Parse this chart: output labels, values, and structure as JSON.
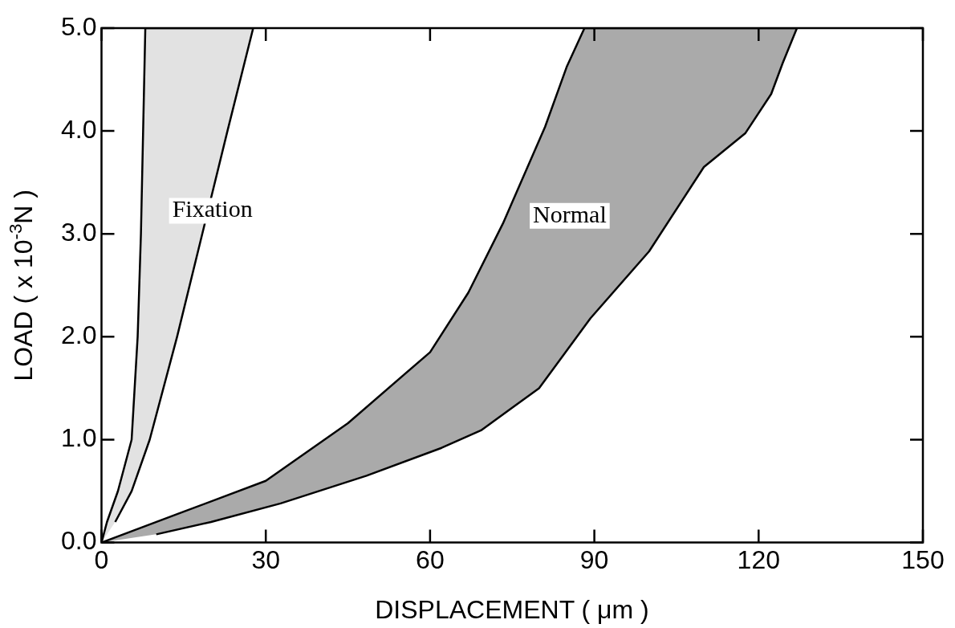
{
  "chart_data": {
    "type": "area",
    "xlabel": "DISPLACEMENT ( μm )",
    "ylabel": "LOAD ( x 10$^{-3}$N )",
    "xlim": [
      0,
      150
    ],
    "ylim": [
      0,
      5
    ],
    "xticks": [
      0,
      30,
      60,
      90,
      120,
      150
    ],
    "yticks": [
      {
        "value": 0,
        "label": "0.0"
      },
      {
        "value": 1,
        "label": "1.0"
      },
      {
        "value": 2,
        "label": "2.0"
      },
      {
        "value": 3,
        "label": "3.0"
      },
      {
        "value": 4,
        "label": "4.0"
      },
      {
        "value": 5,
        "label": "5.0"
      }
    ],
    "grid": false,
    "series": [
      {
        "color": "#a8a8a8",
        "x": [
          0,
          1,
          3,
          5.5,
          6.6,
          7.2,
          7.6,
          8,
          27.7,
          23,
          18.4,
          13.8,
          8.8,
          5.5,
          2.5
        ],
        "values": [
          0,
          0.2,
          0.5,
          1,
          2,
          3,
          4,
          5,
          5,
          4,
          3,
          2,
          1,
          0.5,
          0.2
        ]
      },
      {
        "color": "#000000",
        "x": [
          0,
          15,
          30,
          45,
          60,
          67,
          73.3,
          81,
          85,
          88.2,
          127,
          124.4,
          122.3,
          117.6,
          110,
          100,
          89.3,
          79.9,
          69.3,
          62.1,
          48.4,
          32.7,
          20,
          10
        ],
        "values": [
          0,
          0.3,
          0.6,
          1.16,
          1.85,
          2.43,
          3.1,
          4.04,
          4.63,
          5,
          5,
          4.66,
          4.36,
          3.98,
          3.65,
          2.83,
          2.18,
          1.5,
          1.09,
          0.92,
          0.65,
          0.38,
          0.2,
          0.08
        ]
      }
    ],
    "annotations": [
      "Fixation",
      "Normal"
    ]
  }
}
